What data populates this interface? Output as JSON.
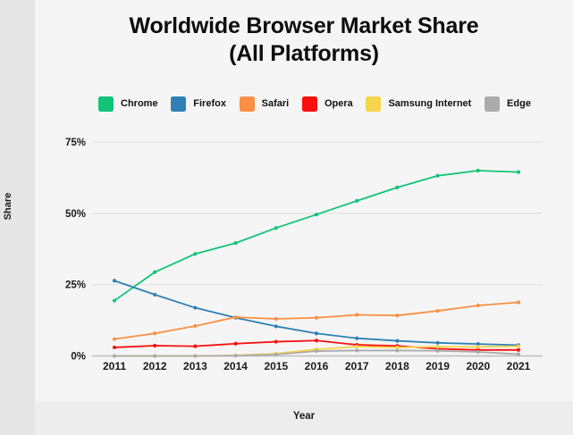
{
  "title": {
    "line1": "Worldwide Browser Market Share",
    "line2": "(All Platforms)"
  },
  "axes": {
    "x_label": "Year",
    "y_label": "Share"
  },
  "chart_data": {
    "type": "line",
    "title": "Worldwide Browser Market Share (All Platforms)",
    "xlabel": "Year",
    "ylabel": "Share",
    "grid": true,
    "legend_position": "top",
    "x": [
      2011,
      2012,
      2013,
      2014,
      2015,
      2016,
      2017,
      2018,
      2019,
      2020,
      2021
    ],
    "x_tick_labels": [
      "2011",
      "2012",
      "2013",
      "2014",
      "2015",
      "2016",
      "2017",
      "2018",
      "2019",
      "2020",
      "2021"
    ],
    "ylim": [
      0,
      80
    ],
    "y_tick_values": [
      0,
      25,
      50,
      75
    ],
    "y_tick_labels": [
      "0%",
      "25%",
      "50%",
      "75%"
    ],
    "series": [
      {
        "name": "Chrome",
        "color": "#11c476",
        "values": [
          19.4,
          29.4,
          35.8,
          39.6,
          44.9,
          49.6,
          54.4,
          59.1,
          63.2,
          65.0,
          64.5
        ]
      },
      {
        "name": "Firefox",
        "color": "#2e80b4",
        "values": [
          26.4,
          21.5,
          16.9,
          13.4,
          10.4,
          7.9,
          6.2,
          5.3,
          4.6,
          4.2,
          3.8
        ]
      },
      {
        "name": "Safari",
        "color": "#fa8f45",
        "values": [
          5.9,
          7.9,
          10.5,
          13.6,
          13.0,
          13.4,
          14.4,
          14.2,
          15.8,
          17.7,
          18.8
        ]
      },
      {
        "name": "Opera",
        "color": "#fa0f0f",
        "values": [
          3.0,
          3.6,
          3.4,
          4.3,
          5.0,
          5.4,
          3.9,
          3.5,
          2.5,
          2.1,
          2.1
        ]
      },
      {
        "name": "Samsung Internet",
        "color": "#f6d44b",
        "values": [
          0.0,
          0.0,
          0.0,
          0.2,
          0.8,
          2.3,
          3.3,
          3.0,
          3.2,
          3.2,
          3.4
        ]
      },
      {
        "name": "Edge",
        "color": "#ababab",
        "values": [
          0.0,
          0.0,
          0.0,
          0.1,
          0.5,
          1.7,
          1.9,
          1.9,
          1.8,
          1.4,
          0.6
        ]
      }
    ],
    "colors": {
      "grid_line": "#e1e1e1",
      "axis_line": "#bdbdbd",
      "tick_text": "#1a1a1a"
    }
  }
}
